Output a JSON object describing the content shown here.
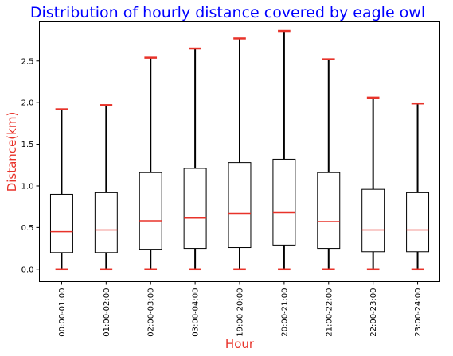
{
  "chart_data": {
    "type": "boxplot",
    "title": "Distribution of hourly distance covered by eagle owl",
    "xlabel": "Hour",
    "ylabel": "Distance(km)",
    "ylim": [
      -0.15,
      2.97
    ],
    "yticks": [
      "0.0",
      "0.5",
      "1.0",
      "1.5",
      "2.0",
      "2.5"
    ],
    "grid": false,
    "colors": {
      "title": "#0000ff",
      "axis_label": "#e8332a",
      "median": "#e8332a",
      "cap": "#e8332a",
      "box": "#000000",
      "whisker": "#000000"
    },
    "categories": [
      "00:00-01:00",
      "01:00-02:00",
      "02:00-03:00",
      "03:00-04:00",
      "19:00-20:00",
      "20:00-21:00",
      "21:00-22:00",
      "22:00-23:00",
      "23:00-24:00"
    ],
    "boxes": [
      {
        "min": 0.0,
        "q1": 0.2,
        "median": 0.45,
        "q3": 0.9,
        "max": 1.92
      },
      {
        "min": 0.0,
        "q1": 0.2,
        "median": 0.47,
        "q3": 0.92,
        "max": 1.97
      },
      {
        "min": 0.0,
        "q1": 0.24,
        "median": 0.58,
        "q3": 1.16,
        "max": 2.54
      },
      {
        "min": 0.0,
        "q1": 0.25,
        "median": 0.62,
        "q3": 1.21,
        "max": 2.65
      },
      {
        "min": 0.0,
        "q1": 0.26,
        "median": 0.67,
        "q3": 1.28,
        "max": 2.77
      },
      {
        "min": 0.0,
        "q1": 0.29,
        "median": 0.68,
        "q3": 1.32,
        "max": 2.86
      },
      {
        "min": 0.0,
        "q1": 0.25,
        "median": 0.57,
        "q3": 1.16,
        "max": 2.52
      },
      {
        "min": 0.0,
        "q1": 0.21,
        "median": 0.47,
        "q3": 0.96,
        "max": 2.06
      },
      {
        "min": 0.0,
        "q1": 0.21,
        "median": 0.47,
        "q3": 0.92,
        "max": 1.99
      }
    ]
  }
}
